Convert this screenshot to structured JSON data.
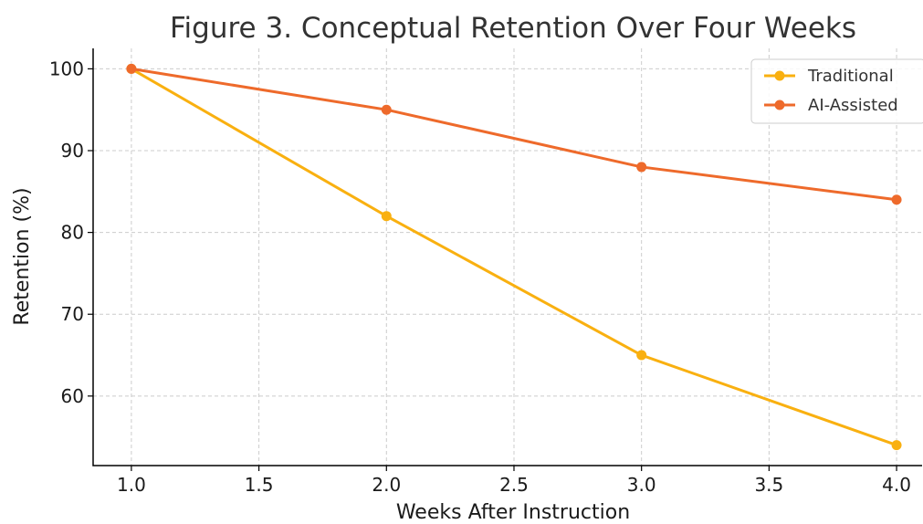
{
  "chart_data": {
    "type": "line",
    "title": "Figure 3. Conceptual Retention Over Four Weeks",
    "xlabel": "Weeks After Instruction",
    "ylabel": "Retention (%)",
    "x": [
      1.0,
      2.0,
      3.0,
      4.0
    ],
    "xlim": [
      0.85,
      4.1
    ],
    "ylim": [
      51.5,
      102.5
    ],
    "xticks": [
      "1.0",
      "1.5",
      "2.0",
      "2.5",
      "3.0",
      "3.5",
      "4.0"
    ],
    "yticks": [
      "60",
      "70",
      "80",
      "90",
      "100"
    ],
    "grid": true,
    "legend_position": "top-right",
    "series": [
      {
        "name": "Traditional",
        "color": "#F9B010",
        "values": [
          100,
          82,
          65,
          54
        ]
      },
      {
        "name": "AI-Assisted",
        "color": "#EE6A2B",
        "values": [
          100,
          95,
          88,
          84
        ]
      }
    ]
  }
}
